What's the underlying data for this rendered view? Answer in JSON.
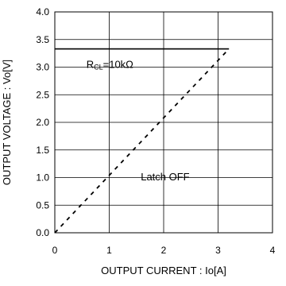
{
  "chart_data": {
    "type": "line",
    "title": "",
    "xlabel": "OUTPUT CURRENT : Io[A]",
    "ylabel": "OUTPUT VOLTAGE : Vo[V]",
    "xlim": [
      0,
      4
    ],
    "ylim": [
      0,
      4.0
    ],
    "x_ticks": [
      "0",
      "1",
      "2",
      "3",
      "4"
    ],
    "y_ticks": [
      "0.0",
      "0.5",
      "1.0",
      "1.5",
      "2.0",
      "2.5",
      "3.0",
      "3.5",
      "4.0"
    ],
    "grid": true,
    "series": [
      {
        "style": "solid",
        "x": [
          0,
          3.2
        ],
        "y": [
          3.33,
          3.33
        ]
      },
      {
        "style": "dashed",
        "x": [
          0,
          3.2
        ],
        "y": [
          0,
          3.33
        ]
      }
    ],
    "annotations": [
      {
        "id": "rcl",
        "main": "R",
        "sub": "CL",
        "rest": "=10kΩ",
        "x": 0.58,
        "y": 3.06
      },
      {
        "id": "latch",
        "text": "Latch OFF",
        "x": 1.58,
        "y": 1.02
      }
    ]
  }
}
